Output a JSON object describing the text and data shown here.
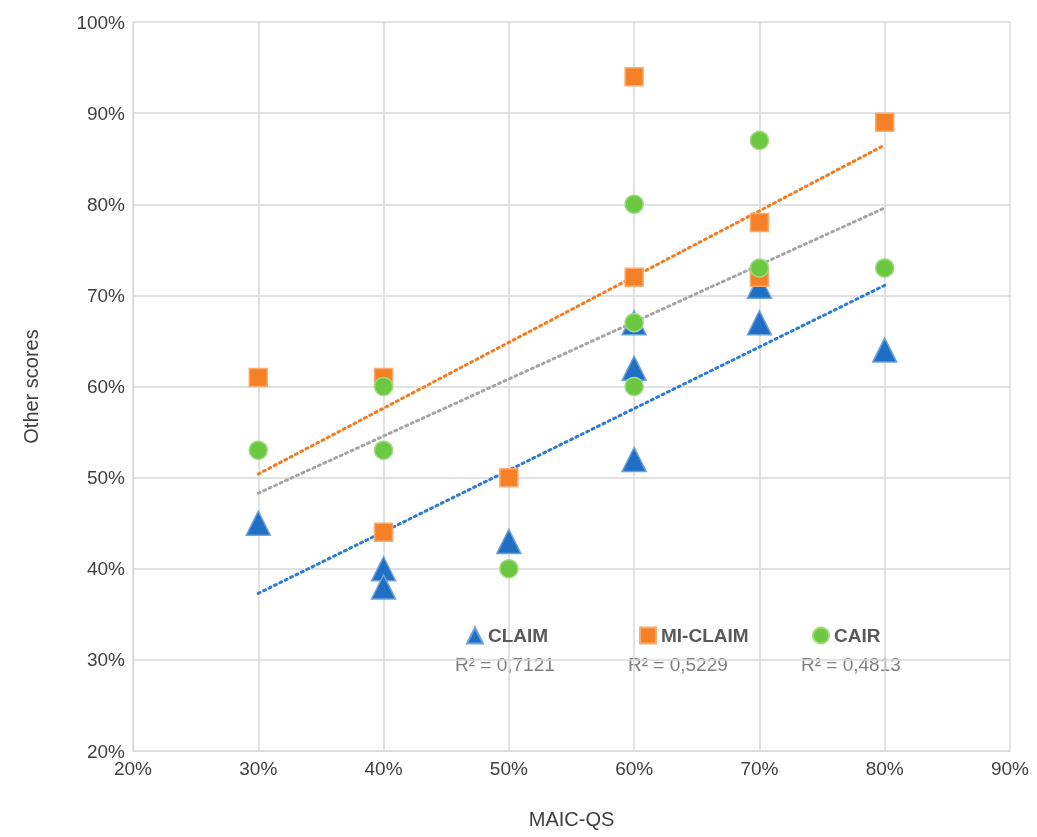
{
  "chart_data": {
    "type": "scatter",
    "xlabel": "MAIC-QS",
    "ylabel": "Other scores",
    "xlim": [
      20,
      90
    ],
    "ylim": [
      20,
      100
    ],
    "xticks": [
      {
        "value": 20,
        "label": "20%"
      },
      {
        "value": 30,
        "label": "30%"
      },
      {
        "value": 40,
        "label": "40%"
      },
      {
        "value": 50,
        "label": "50%"
      },
      {
        "value": 60,
        "label": "60%"
      },
      {
        "value": 70,
        "label": "70%"
      },
      {
        "value": 80,
        "label": "80%"
      },
      {
        "value": 90,
        "label": "90%"
      }
    ],
    "yticks": [
      {
        "value": 20,
        "label": "20%"
      },
      {
        "value": 30,
        "label": "30%"
      },
      {
        "value": 40,
        "label": "40%"
      },
      {
        "value": 50,
        "label": "50%"
      },
      {
        "value": 60,
        "label": "60%"
      },
      {
        "value": 70,
        "label": "70%"
      },
      {
        "value": 80,
        "label": "80%"
      },
      {
        "value": 90,
        "label": "90%"
      },
      {
        "value": 100,
        "label": "100%"
      }
    ],
    "grid": true,
    "legend": "bottom right",
    "series": [
      {
        "name": "CLAIM",
        "color": "#1f6fc5",
        "marker": "triangle",
        "x": [
          30,
          40,
          40,
          50,
          60,
          60,
          60,
          70,
          70,
          80
        ],
        "values": [
          45,
          40,
          38,
          43,
          67,
          62,
          52,
          71,
          67,
          64
        ]
      },
      {
        "name": "MI-CLAIM",
        "color": "#f58025",
        "marker": "square",
        "x": [
          30,
          40,
          40,
          50,
          60,
          60,
          70,
          70,
          80
        ],
        "values": [
          61,
          61,
          44,
          50,
          94,
          72,
          78,
          72,
          89
        ]
      },
      {
        "name": "CAIR",
        "color": "#6cc840",
        "marker": "circle",
        "x": [
          30,
          40,
          40,
          50,
          60,
          60,
          60,
          70,
          70,
          80
        ],
        "values": [
          53,
          60,
          53,
          40,
          80,
          67,
          60,
          87,
          73,
          73
        ]
      },
      {
        "type": "line",
        "color": "#2e7bd6",
        "line_style": "dotted",
        "x": [
          30,
          80
        ],
        "values": [
          37.3,
          71.1
        ]
      },
      {
        "type": "line",
        "color": "#f47c20",
        "line_style": "dotted",
        "x": [
          30,
          80
        ],
        "values": [
          50.4,
          86.5
        ]
      },
      {
        "type": "line",
        "color": "#a6a6a6",
        "line_style": "dotted",
        "x": [
          30,
          80
        ],
        "values": [
          48.3,
          79.6
        ]
      }
    ],
    "annotations": [
      "R² = 0,7121",
      "R² = 0,5229",
      "R² = 0,4813"
    ]
  }
}
